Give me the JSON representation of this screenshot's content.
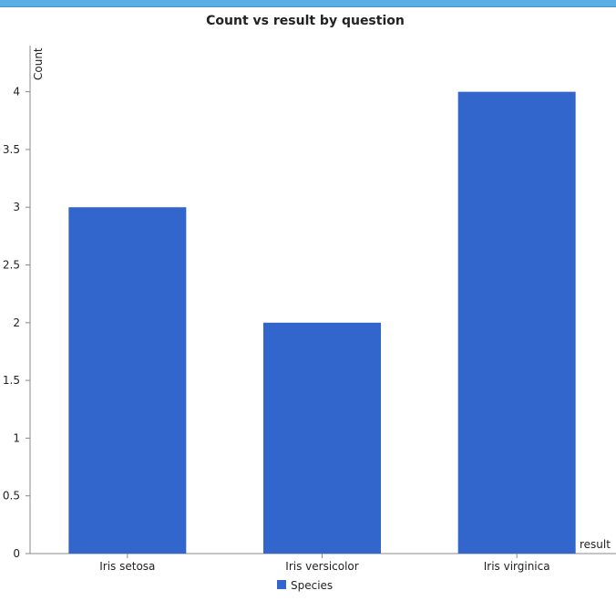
{
  "colors": {
    "bar": "#3366cc",
    "axis": "#888888",
    "text": "#222222",
    "top_bar": "#5aaee6"
  },
  "chart_data": {
    "type": "bar",
    "title": "Count vs result by question",
    "xlabel": "result",
    "ylabel": "Count",
    "categories": [
      "Iris setosa",
      "Iris versicolor",
      "Iris virginica"
    ],
    "series": [
      {
        "name": "Species",
        "values": [
          3,
          2,
          4
        ]
      }
    ],
    "ylim": [
      0,
      4.4
    ],
    "yticks": [
      "0",
      "0.5",
      "1",
      "1.5",
      "2",
      "2.5",
      "3",
      "3.5",
      "4"
    ],
    "grid": false,
    "legend": "bottom"
  }
}
